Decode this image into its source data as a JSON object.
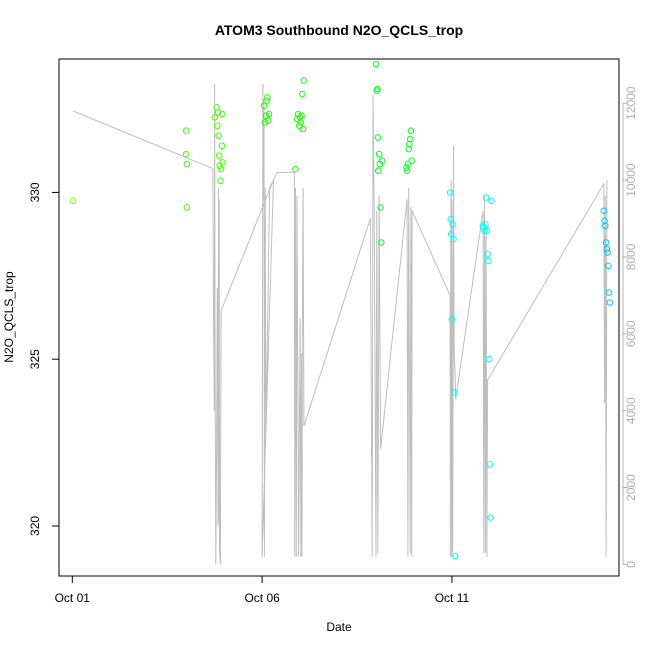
{
  "chart_data": {
    "type": "scatter",
    "title": "ATOM3 Southbound N2O_QCLS_trop",
    "xlabel": "Date",
    "ylabel": "N2O_QCLS_trop",
    "x_ticks": [
      {
        "label": "Oct 01",
        "value": 0
      },
      {
        "label": "Oct 06",
        "value": 5
      },
      {
        "label": "Oct 11",
        "value": 10
      }
    ],
    "xlim": [
      -0.35,
      14.4
    ],
    "y_ticks": [
      {
        "label": "320",
        "value": 320
      },
      {
        "label": "325",
        "value": 325
      },
      {
        "label": "330",
        "value": 330
      }
    ],
    "ylim": [
      318.5,
      334.0
    ],
    "y2_ticks": [
      {
        "label": "0",
        "value": 0
      },
      {
        "label": "2000",
        "value": 2000
      },
      {
        "label": "4000",
        "value": 4000
      },
      {
        "label": "6000",
        "value": 6000
      },
      {
        "label": "8000",
        "value": 8000
      },
      {
        "label": "10000",
        "value": 10000
      },
      {
        "label": "12000",
        "value": 12000
      }
    ],
    "y2lim": [
      -300,
      13150
    ],
    "points_series": [
      {
        "color": "#80ff00",
        "points": [
          [
            0.02,
            329.75
          ]
        ]
      },
      {
        "color": "#40ff00",
        "points": [
          [
            3.0,
            331.85
          ],
          [
            3.0,
            331.15
          ],
          [
            3.02,
            330.85
          ],
          [
            3.02,
            329.55
          ],
          [
            3.75,
            332.25
          ],
          [
            3.8,
            332.55
          ],
          [
            3.82,
            332.0
          ],
          [
            3.84,
            332.4
          ],
          [
            3.86,
            331.7
          ],
          [
            3.87,
            331.1
          ],
          [
            3.88,
            330.8
          ],
          [
            3.9,
            330.35
          ],
          [
            3.92,
            330.7
          ],
          [
            3.94,
            331.4
          ],
          [
            3.95,
            332.35
          ],
          [
            3.96,
            330.9
          ]
        ]
      },
      {
        "color": "#1aff00",
        "points": [
          [
            5.05,
            332.6
          ],
          [
            5.07,
            332.1
          ],
          [
            5.1,
            332.3
          ],
          [
            5.12,
            332.75
          ],
          [
            5.14,
            332.85
          ],
          [
            5.16,
            332.15
          ],
          [
            5.18,
            332.35
          ],
          [
            5.88,
            330.7
          ],
          [
            5.92,
            332.2
          ],
          [
            5.95,
            332.35
          ],
          [
            5.98,
            332.0
          ],
          [
            6.0,
            332.25
          ],
          [
            6.02,
            332.1
          ],
          [
            6.04,
            332.3
          ],
          [
            6.06,
            332.95
          ],
          [
            6.08,
            331.9
          ],
          [
            6.1,
            333.35
          ]
        ]
      },
      {
        "color": "#00ff20",
        "points": [
          [
            8.0,
            333.85
          ],
          [
            8.02,
            333.05
          ],
          [
            8.04,
            333.1
          ],
          [
            8.05,
            331.65
          ],
          [
            8.06,
            330.65
          ],
          [
            8.08,
            331.15
          ],
          [
            8.1,
            330.85
          ],
          [
            8.12,
            329.55
          ],
          [
            8.14,
            328.5
          ],
          [
            8.16,
            330.95
          ],
          [
            8.8,
            330.75
          ],
          [
            8.82,
            330.65
          ],
          [
            8.84,
            330.85
          ],
          [
            8.86,
            331.3
          ],
          [
            8.88,
            331.45
          ],
          [
            8.9,
            331.6
          ],
          [
            8.92,
            331.85
          ],
          [
            8.94,
            330.95
          ]
        ]
      },
      {
        "color": "#00ffff",
        "points": [
          [
            9.95,
            330.0
          ],
          [
            9.97,
            329.2
          ],
          [
            9.98,
            328.75
          ],
          [
            10.0,
            326.2
          ],
          [
            10.02,
            329.05
          ],
          [
            10.04,
            328.6
          ],
          [
            10.06,
            324.0
          ],
          [
            10.08,
            319.1
          ],
          [
            10.82,
            329.0
          ],
          [
            10.84,
            328.95
          ],
          [
            10.86,
            328.85
          ],
          [
            10.88,
            329.05
          ],
          [
            10.9,
            329.85
          ],
          [
            10.92,
            328.85
          ],
          [
            10.94,
            328.15
          ],
          [
            10.96,
            327.95
          ],
          [
            10.98,
            325.0
          ],
          [
            11.0,
            321.85
          ],
          [
            11.02,
            320.25
          ],
          [
            11.04,
            329.75
          ]
        ]
      },
      {
        "color": "#00c8ff",
        "points": [
          [
            14.0,
            329.45
          ],
          [
            14.02,
            329.15
          ],
          [
            14.04,
            329.0
          ],
          [
            14.06,
            328.5
          ],
          [
            14.08,
            328.3
          ],
          [
            14.1,
            328.2
          ],
          [
            14.12,
            327.8
          ],
          [
            14.14,
            327.0
          ],
          [
            14.16,
            326.7
          ]
        ]
      }
    ],
    "altitude_profile": [
      [
        0.02,
        11800
      ],
      [
        3.7,
        10300
      ],
      [
        3.72,
        6500
      ],
      [
        3.74,
        4000
      ],
      [
        3.75,
        12500
      ],
      [
        3.76,
        6000
      ],
      [
        3.78,
        0
      ],
      [
        3.8,
        3000
      ],
      [
        3.82,
        7200
      ],
      [
        3.84,
        1000
      ],
      [
        3.85,
        9800
      ],
      [
        3.86,
        1100
      ],
      [
        3.87,
        9500
      ],
      [
        3.88,
        300
      ],
      [
        3.9,
        0
      ],
      [
        3.92,
        6600
      ],
      [
        5.3,
        10000
      ],
      [
        5.0,
        200
      ],
      [
        5.02,
        12500
      ],
      [
        5.04,
        9500
      ],
      [
        5.05,
        12000
      ],
      [
        5.06,
        200
      ],
      [
        5.08,
        9800
      ],
      [
        5.1,
        3400
      ],
      [
        5.2,
        9800
      ],
      [
        5.4,
        10200
      ],
      [
        5.85,
        10200
      ],
      [
        5.86,
        200
      ],
      [
        5.88,
        9800
      ],
      [
        5.9,
        200
      ],
      [
        5.92,
        9600
      ],
      [
        5.94,
        5000
      ],
      [
        5.96,
        200
      ],
      [
        6.0,
        6400
      ],
      [
        6.02,
        200
      ],
      [
        6.04,
        5500
      ],
      [
        6.05,
        200
      ],
      [
        6.06,
        6000
      ],
      [
        6.08,
        9800
      ],
      [
        6.1,
        3600
      ],
      [
        7.85,
        9000
      ],
      [
        7.9,
        200
      ],
      [
        7.92,
        12200
      ],
      [
        7.95,
        9500
      ],
      [
        8.0,
        200
      ],
      [
        8.02,
        9200
      ],
      [
        8.05,
        300
      ],
      [
        8.08,
        9600
      ],
      [
        8.12,
        3000
      ],
      [
        8.82,
        9500
      ],
      [
        8.84,
        200
      ],
      [
        8.86,
        9800
      ],
      [
        8.9,
        300
      ],
      [
        8.92,
        9300
      ],
      [
        8.94,
        200
      ],
      [
        8.95,
        9200
      ],
      [
        9.95,
        7000
      ],
      [
        9.96,
        200
      ],
      [
        9.97,
        8800
      ],
      [
        9.98,
        10000
      ],
      [
        9.99,
        200
      ],
      [
        10.0,
        9500
      ],
      [
        10.02,
        300
      ],
      [
        10.04,
        10900
      ],
      [
        10.05,
        8000
      ],
      [
        10.06,
        5500
      ],
      [
        10.08,
        5000
      ],
      [
        10.1,
        4300
      ],
      [
        10.82,
        9200
      ],
      [
        10.84,
        300
      ],
      [
        10.86,
        9600
      ],
      [
        10.88,
        300
      ],
      [
        10.9,
        8800
      ],
      [
        10.92,
        200
      ],
      [
        10.94,
        4800
      ],
      [
        14.0,
        9900
      ],
      [
        14.02,
        4200
      ],
      [
        14.04,
        9600
      ],
      [
        14.06,
        200
      ],
      [
        14.08,
        10000
      ]
    ]
  }
}
